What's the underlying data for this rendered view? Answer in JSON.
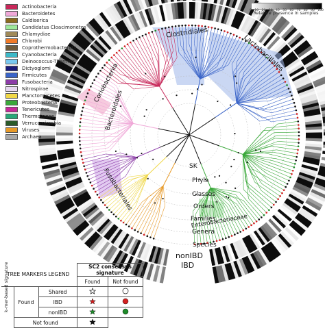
{
  "legend": {
    "items": [
      {
        "label": "Actinobacteria",
        "color": "#c8285a"
      },
      {
        "label": "Bacteroidetes",
        "color": "#f0a8d8"
      },
      {
        "label": "Caldiserica",
        "color": "#8b6a1e"
      },
      {
        "label": "Candidatus Cloacimonetes",
        "color": "#9ee89a"
      },
      {
        "label": "Chlamydiae",
        "color": "#a08a5a"
      },
      {
        "label": "Chlorobi",
        "color": "#f07a28"
      },
      {
        "label": "Coprothermobacterota",
        "color": "#6e5a3a"
      },
      {
        "label": "Cyanobacteria",
        "color": "#3cb8c8"
      },
      {
        "label": "Deinococcus-Thermus",
        "color": "#78c8f0"
      },
      {
        "label": "Dictyoglomi",
        "color": "#1a1a78"
      },
      {
        "label": "Firmicutes",
        "color": "#3a64c8"
      },
      {
        "label": "Fusobacteria",
        "color": "#8c3ca8"
      },
      {
        "label": "Nitrospirae",
        "color": "#e6d8f0"
      },
      {
        "label": "Planctomycetes",
        "color": "#f0d848"
      },
      {
        "label": "Proteobacteria",
        "color": "#3aa83a"
      },
      {
        "label": "Tenericutes",
        "color": "#c8289a"
      },
      {
        "label": "Thermotogae",
        "color": "#28a878"
      },
      {
        "label": "Verrucomicrobia",
        "color": "#2a5a2a"
      },
      {
        "label": "Viruses",
        "color": "#e89a28"
      },
      {
        "label": "Archaea",
        "color": "#a8a8a8"
      }
    ]
  },
  "scale": {
    "ticks": [
      "0",
      "10",
      "20",
      "30",
      "40",
      "50",
      "60",
      "70",
      "80",
      "90",
      "100"
    ],
    "title": "Relative presence in samples"
  },
  "clades": {
    "clostridiales": "Clostridiales",
    "lactobacillales": "Lactobacillales",
    "coriobacteriia": "Coriobacteriia",
    "bacteroidales": "Bacteroidales",
    "fusobacteriales": "Fusobacteriales",
    "enterobacteriaceae": "Enterobacteriaceae"
  },
  "ranks": [
    "SK",
    "Phyla",
    "Classes",
    "Orders",
    "Families",
    "Genera",
    "Species"
  ],
  "rings": {
    "outer": "nonIBD",
    "inner": "IBD"
  },
  "markers_table": {
    "title": "TREE MARKERS LEGEND",
    "consensus_header": "SC2 consensus signature",
    "found": "Found",
    "not_found": "Not found",
    "kmer_header": "k-mer-based signature",
    "kmer_found": "Found",
    "kmer_not_found": "Not found",
    "rows": [
      "Shared",
      "IBD",
      "nonIBD"
    ]
  }
}
